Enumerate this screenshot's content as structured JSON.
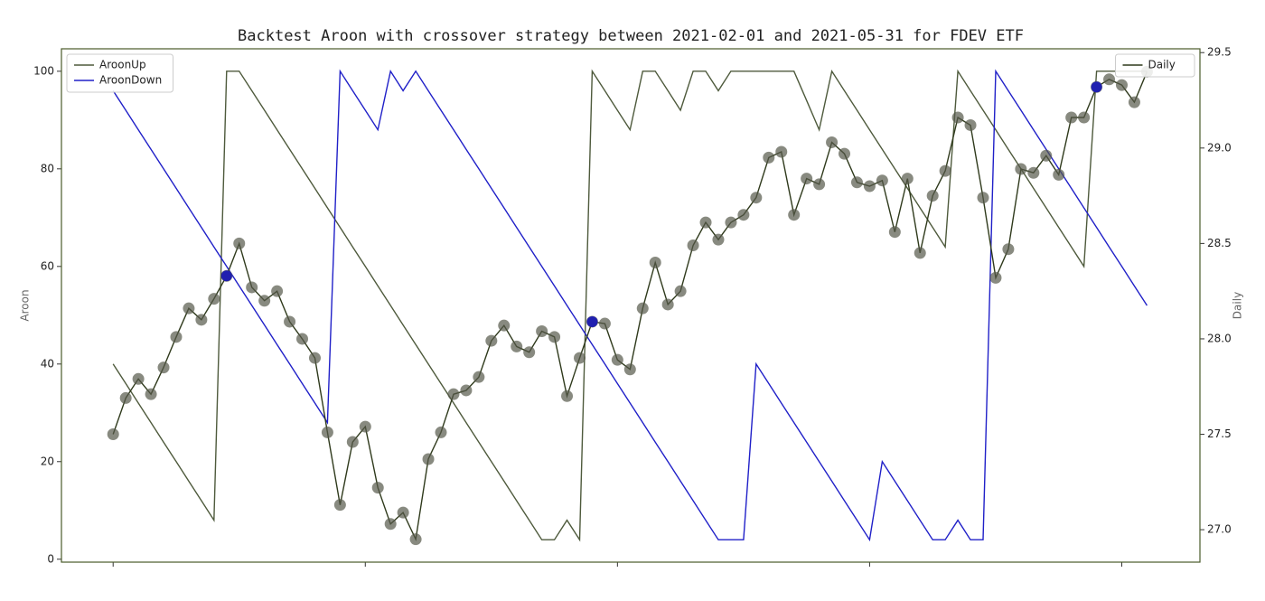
{
  "chart_data": {
    "type": "line",
    "title": "Backtest Aroon with crossover strategy between 2021-02-01 and 2021-05-31 for FDEV ETF",
    "ylabel": "Aroon",
    "y2label": "Daily",
    "x": [
      0,
      1,
      2,
      3,
      4,
      5,
      6,
      7,
      8,
      9,
      10,
      11,
      12,
      13,
      14,
      15,
      16,
      17,
      18,
      19,
      20,
      21,
      22,
      23,
      24,
      25,
      26,
      27,
      28,
      29,
      30,
      31,
      32,
      33,
      34,
      35,
      36,
      37,
      38,
      39,
      40,
      41,
      42,
      43,
      44,
      45,
      46,
      47,
      48,
      49,
      50,
      51,
      52,
      53,
      54,
      55,
      56,
      57,
      58,
      59,
      60,
      61,
      62,
      63,
      64,
      65,
      66,
      67,
      68,
      69,
      70,
      71,
      72,
      73,
      74,
      75,
      76,
      77,
      78,
      79,
      80,
      81,
      82
    ],
    "xlim": [
      -4.1,
      86.2
    ],
    "xticks": [
      0,
      20,
      40,
      60,
      80
    ],
    "ylim": [
      -0.6,
      104.6
    ],
    "yticks": [
      0,
      20,
      40,
      60,
      80,
      100
    ],
    "y2lim": [
      26.83,
      29.52
    ],
    "y2ticks": [
      {
        "value": 27,
        "label": "27.0"
      },
      27.5,
      {
        "value": 28,
        "label": "28.0"
      },
      28.5,
      {
        "value": 29,
        "label": "29.0"
      },
      29.5
    ],
    "legend": "upper left",
    "legend2": "upper right",
    "series": [
      {
        "name": "AroonUp",
        "color": "#4e5a3c",
        "axis": "y",
        "marker": false,
        "values": [
          40,
          36,
          32,
          28,
          24,
          20,
          16,
          12,
          8,
          100,
          100,
          96,
          92,
          88,
          84,
          80,
          76,
          72,
          68,
          64,
          60,
          56,
          52,
          48,
          44,
          40,
          36,
          32,
          28,
          24,
          20,
          16,
          12,
          8,
          4,
          4,
          8,
          4,
          100,
          96,
          92,
          88,
          100,
          100,
          96,
          92,
          100,
          100,
          96,
          100,
          100,
          100,
          100,
          100,
          100,
          94,
          88,
          100,
          96,
          92,
          88,
          84,
          80,
          76,
          72,
          68,
          64,
          100,
          96,
          92,
          88,
          84,
          80,
          76,
          72,
          68,
          64,
          60,
          100,
          100,
          100,
          100,
          100
        ]
      },
      {
        "name": "AroonDown",
        "color": "#2020c8",
        "axis": "y",
        "marker": false,
        "values": [
          96,
          92,
          88,
          84,
          80,
          76,
          72,
          68,
          64,
          60,
          56,
          52,
          48,
          44,
          40,
          36,
          32,
          28,
          100,
          96,
          92,
          88,
          100,
          96,
          100,
          96,
          92,
          88,
          84,
          80,
          76,
          72,
          68,
          64,
          60,
          56,
          52,
          48,
          44,
          40,
          36,
          32,
          28,
          24,
          20,
          16,
          12,
          8,
          4,
          4,
          4,
          40,
          36,
          32,
          28,
          24,
          20,
          16,
          12,
          8,
          4,
          20,
          16,
          12,
          8,
          4,
          4,
          8,
          4,
          4,
          100,
          96,
          92,
          88,
          84,
          80,
          76,
          72,
          68,
          64,
          60,
          56,
          52
        ]
      },
      {
        "name": "Daily",
        "color": "#2f3a1c",
        "axis": "y2",
        "marker": true,
        "values": [
          27.5,
          27.69,
          27.79,
          27.71,
          27.85,
          28.01,
          28.16,
          28.1,
          28.21,
          28.33,
          28.5,
          28.27,
          28.2,
          28.25,
          28.09,
          28.0,
          27.9,
          27.51,
          27.13,
          27.46,
          27.54,
          27.22,
          27.03,
          27.09,
          26.95,
          27.37,
          27.51,
          27.71,
          27.73,
          27.8,
          27.99,
          28.07,
          27.96,
          27.93,
          28.04,
          28.01,
          27.7,
          27.9,
          28.09,
          28.08,
          27.89,
          27.84,
          28.16,
          28.4,
          28.18,
          28.25,
          28.49,
          28.61,
          28.52,
          28.61,
          28.65,
          28.74,
          28.95,
          28.98,
          28.65,
          28.84,
          28.81,
          29.03,
          28.97,
          28.82,
          28.8,
          28.83,
          28.56,
          28.84,
          28.45,
          28.75,
          28.88,
          29.16,
          29.12,
          28.74,
          28.32,
          28.47,
          28.89,
          28.87,
          28.96,
          28.86,
          29.16,
          29.16,
          29.32,
          29.36,
          29.33,
          29.24,
          29.4
        ]
      },
      {
        "color": "#2020b0",
        "axis": "y2",
        "marker": true,
        "line": false,
        "values": [
          null,
          null,
          null,
          null,
          null,
          null,
          null,
          null,
          null,
          28.33,
          null,
          null,
          null,
          null,
          null,
          null,
          null,
          null,
          null,
          null,
          null,
          null,
          null,
          null,
          null,
          null,
          null,
          null,
          null,
          null,
          null,
          null,
          null,
          null,
          null,
          null,
          null,
          null,
          28.09,
          null,
          null,
          null,
          null,
          null,
          null,
          null,
          null,
          null,
          null,
          null,
          null,
          null,
          null,
          null,
          null,
          null,
          null,
          null,
          null,
          null,
          null,
          null,
          null,
          null,
          null,
          null,
          null,
          null,
          null,
          null,
          null,
          null,
          null,
          null,
          null,
          null,
          null,
          null,
          29.32,
          null,
          null,
          null,
          null
        ]
      }
    ]
  }
}
